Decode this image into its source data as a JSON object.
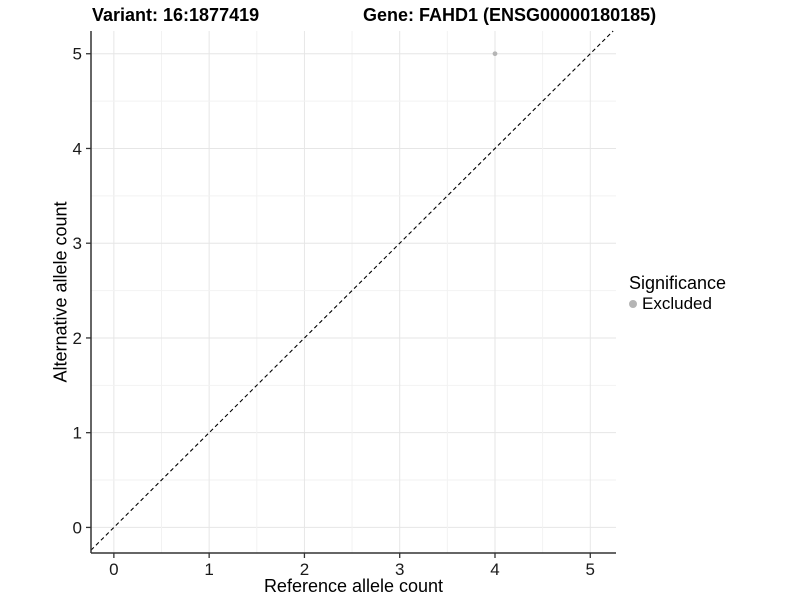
{
  "chart_data": {
    "type": "scatter",
    "title_left": "Variant: 16:1877419",
    "title_right": "Gene: FAHD1 (ENSG00000180185)",
    "xlabel": "Reference allele count",
    "ylabel": "Alternative allele count",
    "xlim": [
      -0.24,
      5.27
    ],
    "ylim": [
      -0.27,
      5.24
    ],
    "xticks": [
      0,
      1,
      2,
      3,
      4,
      5
    ],
    "yticks": [
      0,
      1,
      2,
      3,
      4,
      5
    ],
    "grid": {
      "minor_every": 0.5,
      "major_every": 1,
      "major_color": "#e6e6e6",
      "minor_color": "#f2f2f2"
    },
    "identity_line": {
      "style": "dashed",
      "from": -0.24,
      "to": 5.24,
      "color": "#000000"
    },
    "points": [
      {
        "x": 4,
        "y": 5,
        "series": "Excluded",
        "color": "#b5b5b5"
      }
    ],
    "legend": {
      "title": "Significance",
      "position": "right",
      "items": [
        {
          "label": "Excluded",
          "color": "#b5b5b5"
        }
      ]
    },
    "axis_color": "#333333"
  }
}
